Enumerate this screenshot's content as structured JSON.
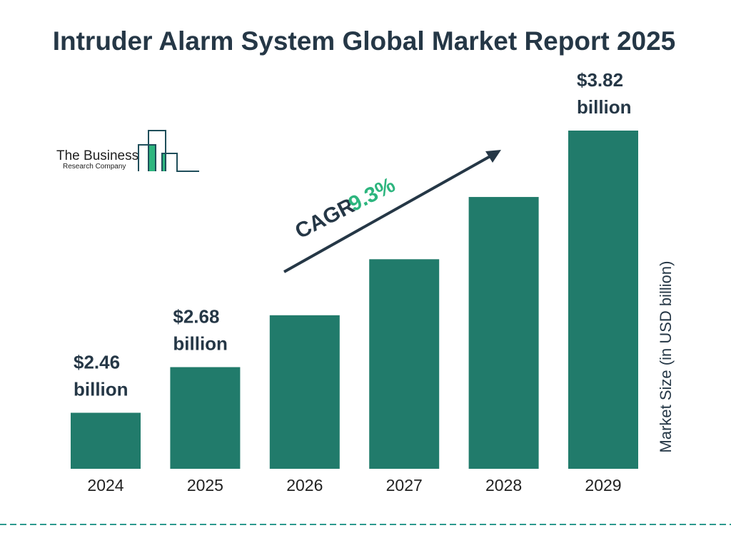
{
  "chart_data": {
    "type": "bar",
    "title": "Intruder Alarm System Global Market Report 2025",
    "ylabel": "Market Size (in USD billion)",
    "xlabel": "",
    "categories": [
      "2024",
      "2025",
      "2026",
      "2027",
      "2028",
      "2029"
    ],
    "values": [
      2.46,
      2.68,
      2.93,
      3.2,
      3.5,
      3.82
    ],
    "data_labels": [
      {
        "index": 0,
        "value": "$2.46",
        "unit": "billion"
      },
      {
        "index": 1,
        "value": "$2.68",
        "unit": "billion"
      },
      {
        "index": 5,
        "value": "$3.82",
        "unit": "billion"
      }
    ],
    "ylim": [
      2.19,
      3.82
    ],
    "grid": false,
    "annotation": {
      "label": "CAGR",
      "value": "9.3%"
    },
    "colors": {
      "bar": "#217B6B",
      "text": "#253746",
      "cagr": "#2DB57E",
      "dashed_line": "#2C9A8E"
    }
  },
  "logo": {
    "line1": "The Business",
    "line2": "Research Company"
  }
}
